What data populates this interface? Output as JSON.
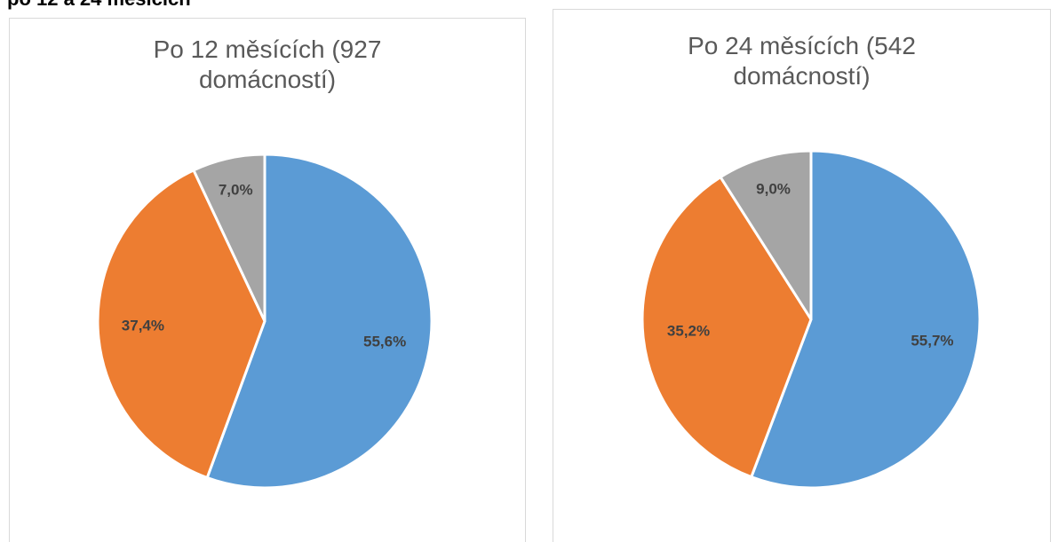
{
  "heading": "po 12 a 24 měsících",
  "chart_data": [
    {
      "type": "pie",
      "title": "Po 12 měsících (927 domácností)",
      "values": [
        55.6,
        37.4,
        7.0
      ],
      "value_labels": [
        "55,6%",
        "37,4%",
        "7,0%"
      ],
      "colors": [
        "#5b9bd5",
        "#ed7d31",
        "#a5a5a5"
      ]
    },
    {
      "type": "pie",
      "title": "Po 24 měsících (542 domácností)",
      "values": [
        55.7,
        35.2,
        9.0
      ],
      "value_labels": [
        "55,7%",
        "35,2%",
        "9,0%"
      ],
      "colors": [
        "#5b9bd5",
        "#ed7d31",
        "#a5a5a5"
      ]
    }
  ]
}
